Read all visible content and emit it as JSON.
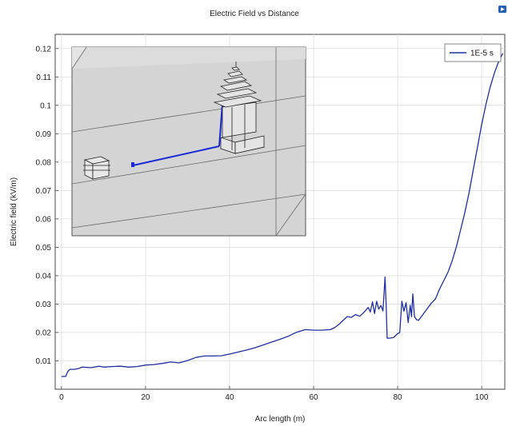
{
  "chart_data": {
    "type": "line",
    "title": "Electric Field vs Distance",
    "xlabel": "Arc length (m)",
    "ylabel": "Electric field (kV/m)",
    "xlim": [
      -1.5,
      105.5
    ],
    "ylim": [
      0,
      0.125
    ],
    "x_ticks": [
      0,
      20,
      40,
      60,
      80,
      100
    ],
    "y_ticks": [
      0.01,
      0.02,
      0.03,
      0.04,
      0.05,
      0.06,
      0.07,
      0.08,
      0.09,
      0.1,
      0.11,
      0.12
    ],
    "grid": true,
    "legend_position": "top-right",
    "series": [
      {
        "name": "1E-5 s",
        "color": "#1f2f9f",
        "x": [
          0,
          1,
          1.5,
          2,
          3,
          4,
          5,
          7,
          9,
          10,
          12,
          14,
          16,
          18,
          20,
          22,
          24,
          26,
          28,
          30,
          32,
          34,
          36,
          38,
          40,
          42,
          44,
          46,
          48,
          50,
          52,
          54,
          56,
          58,
          60,
          62,
          64,
          65,
          66,
          67,
          68,
          69,
          70,
          71,
          72,
          73,
          73.5,
          74,
          74.5,
          75,
          75.5,
          76,
          76.5,
          77,
          77.3,
          77.5,
          78,
          79,
          80,
          80.5,
          81,
          81.5,
          82,
          82.5,
          83,
          83.3,
          83.6,
          84,
          84.5,
          85,
          86,
          87,
          88,
          89,
          90,
          91,
          92,
          93,
          94,
          95,
          96,
          97,
          98,
          99,
          100,
          101,
          102,
          103,
          104,
          105
        ],
        "y": [
          0.0045,
          0.0045,
          0.0063,
          0.007,
          0.007,
          0.0073,
          0.0078,
          0.0076,
          0.0081,
          0.0078,
          0.008,
          0.0081,
          0.0078,
          0.008,
          0.0085,
          0.0087,
          0.0091,
          0.0096,
          0.0093,
          0.0101,
          0.0112,
          0.0117,
          0.0117,
          0.0118,
          0.0124,
          0.0131,
          0.0138,
          0.0146,
          0.0156,
          0.0166,
          0.0176,
          0.0187,
          0.0201,
          0.021,
          0.0208,
          0.0208,
          0.021,
          0.0217,
          0.0228,
          0.0242,
          0.0256,
          0.0253,
          0.0263,
          0.0257,
          0.0271,
          0.0288,
          0.0272,
          0.0308,
          0.0267,
          0.031,
          0.0282,
          0.0295,
          0.0276,
          0.0395,
          0.028,
          0.018,
          0.018,
          0.0182,
          0.0196,
          0.02,
          0.031,
          0.0275,
          0.0305,
          0.0235,
          0.0296,
          0.0255,
          0.0336,
          0.0256,
          0.0245,
          0.0243,
          0.0263,
          0.0283,
          0.0303,
          0.0318,
          0.0354,
          0.0383,
          0.0413,
          0.0453,
          0.0503,
          0.0563,
          0.0623,
          0.0693,
          0.0773,
          0.0853,
          0.0933,
          0.1003,
          0.1063,
          0.1113,
          0.1153,
          0.1183
        ]
      }
    ]
  },
  "inset": {
    "name": "3D model view"
  },
  "corner_icon": "play-icon"
}
